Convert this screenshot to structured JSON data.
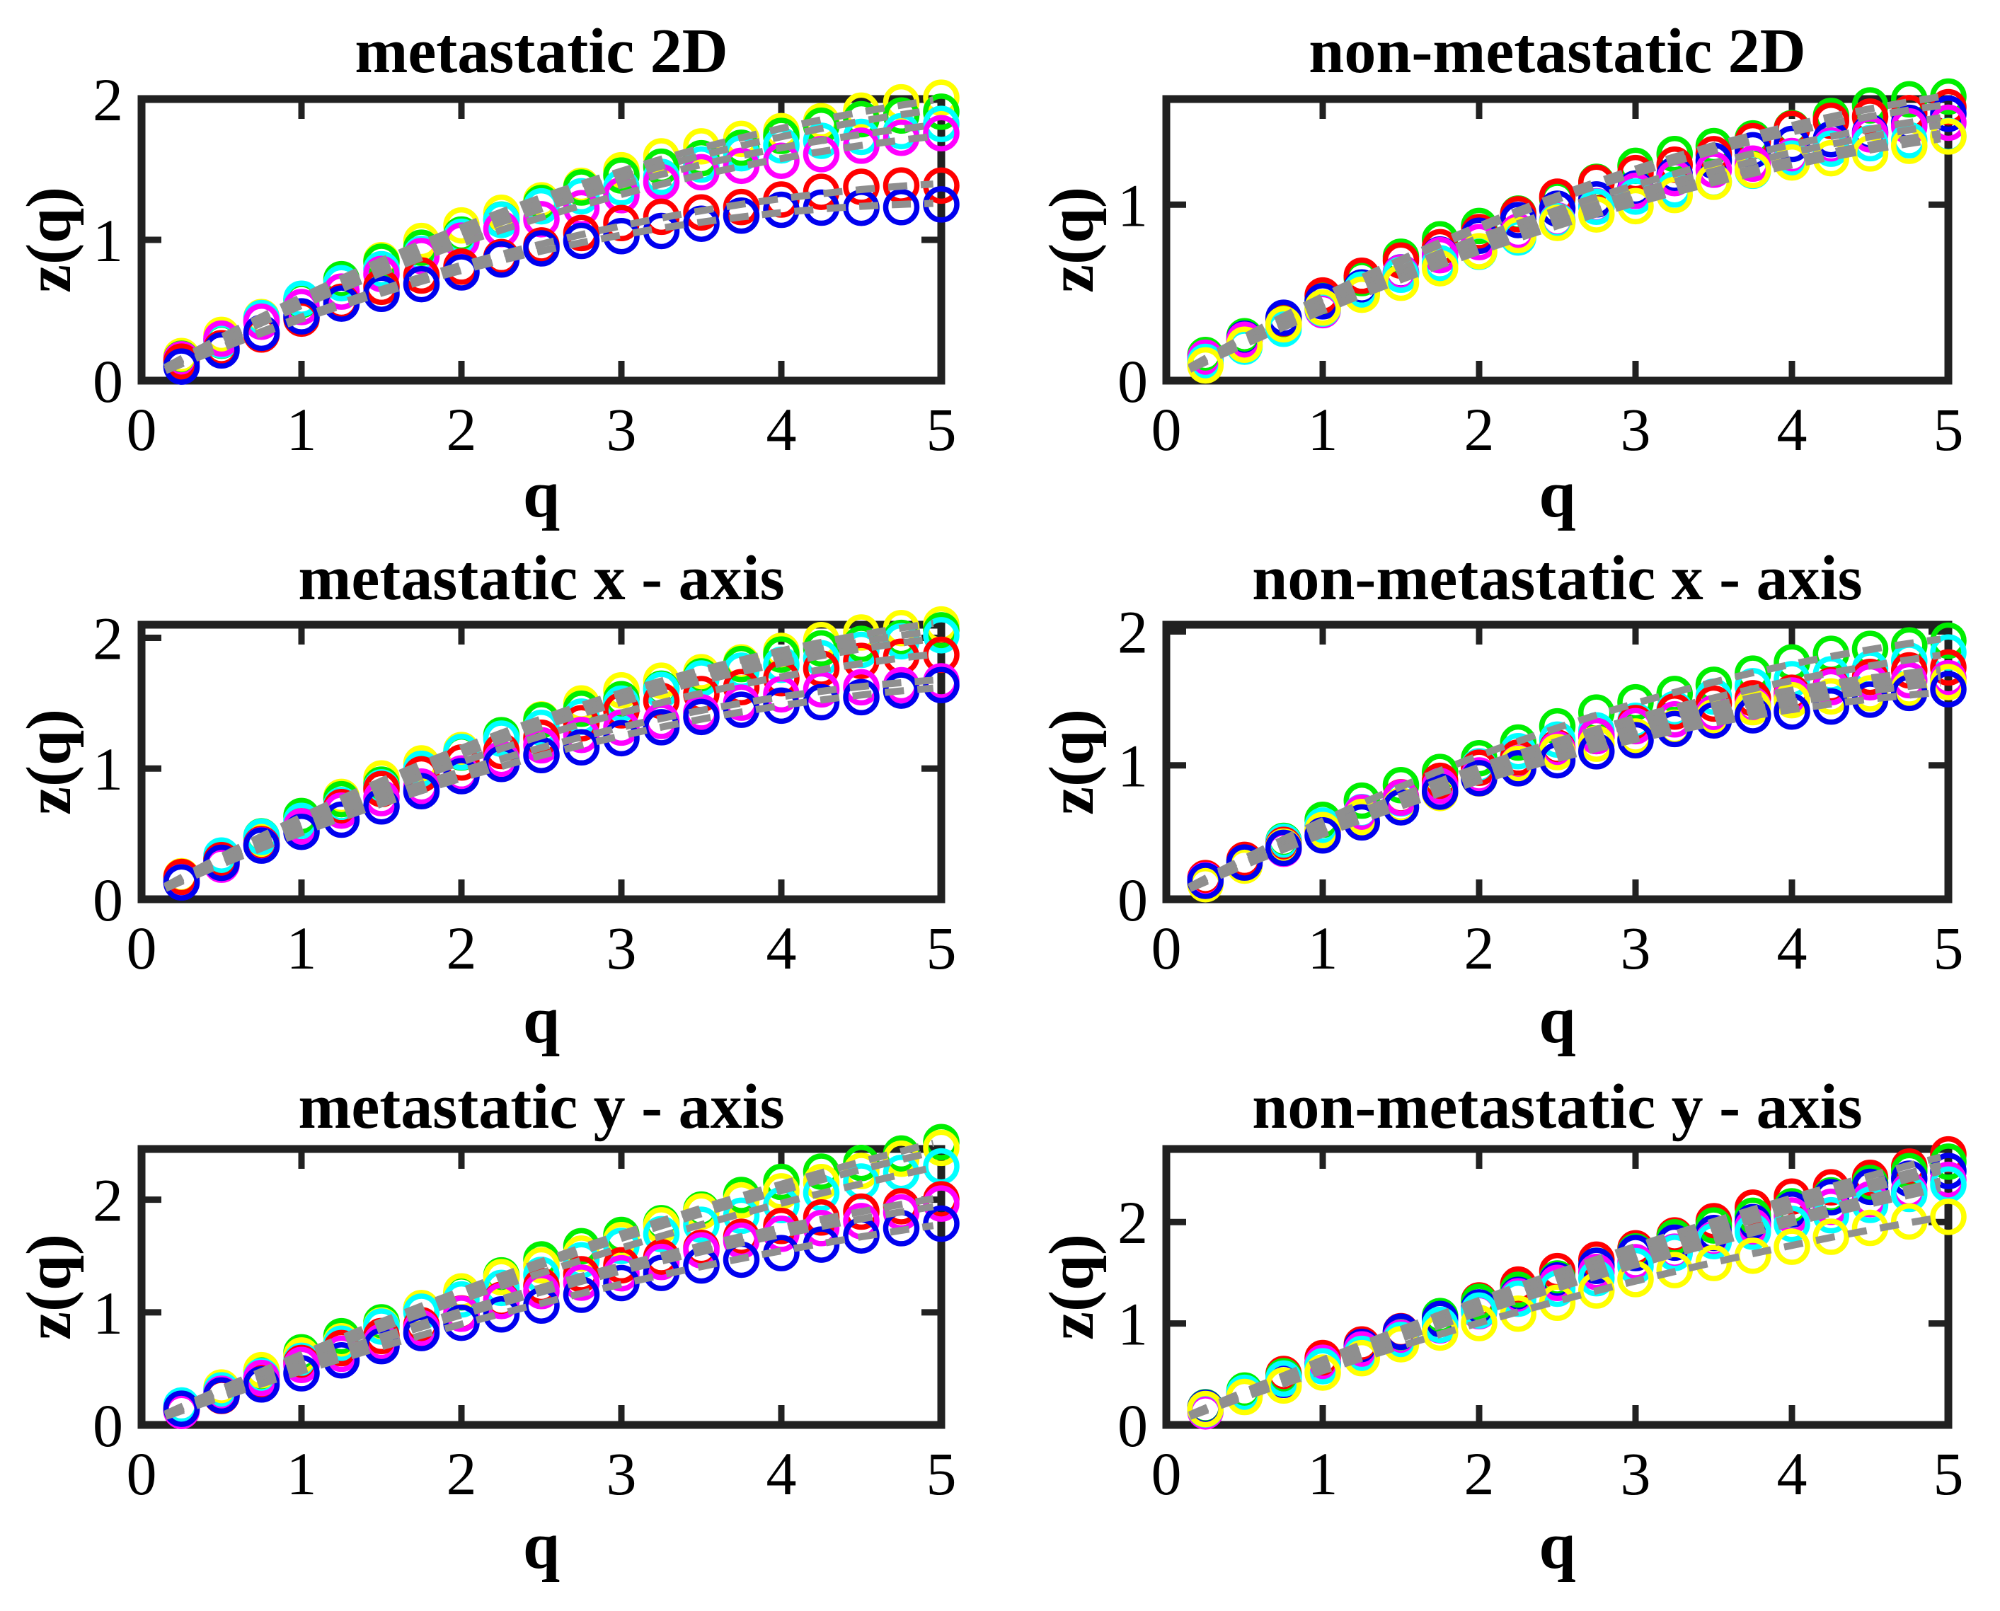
{
  "figure": {
    "background": "#ffffff",
    "text_color": "#000000",
    "frame_color": "#212121",
    "trend_color": "#8f8f8f",
    "trend_style": "dashed"
  },
  "chart_data": [
    {
      "type": "scatter",
      "title": "metastatic 2D",
      "xlabel": "q",
      "ylabel": "z(q)",
      "xlim": [
        0,
        5
      ],
      "ylim": [
        0,
        2.0
      ],
      "xticks": [
        0,
        1,
        2,
        3,
        4,
        5
      ],
      "yticks": [
        0,
        1,
        2
      ],
      "grid": false,
      "legend": "none",
      "marker": "open-circle",
      "q_start": 0.25,
      "q_step": 0.25,
      "q_end": 5,
      "series": [
        {
          "name": "yellow",
          "color": "#ffff00",
          "fit_a": 0.64,
          "fit_b": -0.048,
          "z_at_q5": 2.0
        },
        {
          "name": "green",
          "color": "#00ee00",
          "fit_a": 0.622,
          "fit_b": -0.0472,
          "z_at_q5": 1.93
        },
        {
          "name": "cyan",
          "color": "#00ffff",
          "fit_a": 0.612,
          "fit_b": -0.0496,
          "z_at_q5": 1.82
        },
        {
          "name": "magenta",
          "color": "#ff00ff",
          "fit_a": 0.58,
          "fit_b": -0.0464,
          "z_at_q5": 1.74
        },
        {
          "name": "red",
          "color": "#ff0000",
          "fit_a": 0.496,
          "fit_b": -0.0432,
          "z_at_q5": 1.4
        },
        {
          "name": "blue",
          "color": "#0000ee",
          "fit_a": 0.484,
          "fit_b": -0.0464,
          "z_at_q5": 1.26
        }
      ]
    },
    {
      "type": "scatter",
      "title": "non-metastatic 2D",
      "xlabel": "q",
      "ylabel": "z(q)",
      "xlim": [
        0,
        5
      ],
      "ylim": [
        0,
        1.6
      ],
      "xticks": [
        0,
        1,
        2,
        3,
        4,
        5
      ],
      "yticks": [
        0,
        1
      ],
      "grid": false,
      "legend": "none",
      "marker": "open-circle",
      "q_start": 0.25,
      "q_step": 0.25,
      "q_end": 5,
      "series": [
        {
          "name": "green",
          "color": "#00ee00",
          "fit_a": 0.516,
          "fit_b": -0.0384,
          "z_at_q5": 1.62
        },
        {
          "name": "red",
          "color": "#ff0000",
          "fit_a": 0.51,
          "fit_b": -0.0392,
          "z_at_q5": 1.57
        },
        {
          "name": "blue",
          "color": "#0000ee",
          "fit_a": 0.476,
          "fit_b": -0.0352,
          "z_at_q5": 1.5
        },
        {
          "name": "magenta",
          "color": "#ff00ff",
          "fit_a": 0.452,
          "fit_b": -0.032,
          "z_at_q5": 1.46
        },
        {
          "name": "cyan",
          "color": "#00ffff",
          "fit_a": 0.438,
          "fit_b": -0.0312,
          "z_at_q5": 1.41
        },
        {
          "name": "yellow",
          "color": "#ffff00",
          "fit_a": 0.428,
          "fit_b": -0.0304,
          "z_at_q5": 1.38
        }
      ]
    },
    {
      "type": "scatter",
      "title": "metastatic x - axis",
      "xlabel": "q",
      "ylabel": "z(q)",
      "xlim": [
        0,
        5
      ],
      "ylim": [
        0,
        2.1
      ],
      "xticks": [
        0,
        1,
        2,
        3,
        4,
        5
      ],
      "yticks": [
        0,
        1,
        2
      ],
      "grid": false,
      "legend": "none",
      "marker": "open-circle",
      "q_start": 0.25,
      "q_step": 0.25,
      "q_end": 5,
      "series": [
        {
          "name": "yellow",
          "color": "#ffff00",
          "fit_a": 0.68,
          "fit_b": -0.0512,
          "z_at_q5": 2.12
        },
        {
          "name": "green",
          "color": "#00ee00",
          "fit_a": 0.668,
          "fit_b": -0.0512,
          "z_at_q5": 2.06
        },
        {
          "name": "cyan",
          "color": "#00ffff",
          "fit_a": 0.656,
          "fit_b": -0.0512,
          "z_at_q5": 2.0
        },
        {
          "name": "red",
          "color": "#ff0000",
          "fit_a": 0.624,
          "fit_b": -0.0496,
          "z_at_q5": 1.88
        },
        {
          "name": "magenta",
          "color": "#ff00ff",
          "fit_a": 0.592,
          "fit_b": -0.0512,
          "z_at_q5": 1.68
        },
        {
          "name": "blue",
          "color": "#0000ee",
          "fit_a": 0.556,
          "fit_b": -0.0464,
          "z_at_q5": 1.62
        }
      ]
    },
    {
      "type": "scatter",
      "title": "non-metastatic x - axis",
      "xlabel": "q",
      "ylabel": "z(q)",
      "xlim": [
        0,
        5
      ],
      "ylim": [
        0,
        2.05
      ],
      "xticks": [
        0,
        1,
        2,
        3,
        4,
        5
      ],
      "yticks": [
        0,
        1,
        2
      ],
      "grid": false,
      "legend": "none",
      "marker": "open-circle",
      "q_start": 0.25,
      "q_step": 0.25,
      "q_end": 5,
      "series": [
        {
          "name": "green",
          "color": "#00ee00",
          "fit_a": 0.634,
          "fit_b": -0.0488,
          "z_at_q5": 1.95
        },
        {
          "name": "cyan",
          "color": "#00ffff",
          "fit_a": 0.578,
          "fit_b": -0.0424,
          "z_at_q5": 1.83
        },
        {
          "name": "red",
          "color": "#ff0000",
          "fit_a": 0.576,
          "fit_b": -0.0464,
          "z_at_q5": 1.72
        },
        {
          "name": "magenta",
          "color": "#ff00ff",
          "fit_a": 0.562,
          "fit_b": -0.0456,
          "z_at_q5": 1.67
        },
        {
          "name": "yellow",
          "color": "#ffff00",
          "fit_a": 0.54,
          "fit_b": -0.0432,
          "z_at_q5": 1.62
        },
        {
          "name": "blue",
          "color": "#0000ee",
          "fit_a": 0.53,
          "fit_b": -0.044,
          "z_at_q5": 1.55
        }
      ]
    },
    {
      "type": "scatter",
      "title": "metastatic y - axis",
      "xlabel": "q",
      "ylabel": "z(q)",
      "xlim": [
        0,
        5
      ],
      "ylim": [
        0,
        2.45
      ],
      "xticks": [
        0,
        1,
        2,
        3,
        4,
        5
      ],
      "yticks": [
        0,
        1,
        2
      ],
      "grid": false,
      "legend": "none",
      "marker": "open-circle",
      "q_start": 0.25,
      "q_step": 0.25,
      "q_end": 5,
      "series": [
        {
          "name": "green",
          "color": "#00ee00",
          "fit_a": 0.656,
          "fit_b": -0.0304,
          "z_at_q5": 2.52
        },
        {
          "name": "yellow",
          "color": "#ffff00",
          "fit_a": 0.648,
          "fit_b": -0.032,
          "z_at_q5": 2.44
        },
        {
          "name": "cyan",
          "color": "#00ffff",
          "fit_a": 0.62,
          "fit_b": -0.032,
          "z_at_q5": 2.3
        },
        {
          "name": "red",
          "color": "#ff0000",
          "fit_a": 0.572,
          "fit_b": -0.0336,
          "z_at_q5": 2.02
        },
        {
          "name": "magenta",
          "color": "#ff00ff",
          "fit_a": 0.554,
          "fit_b": -0.0328,
          "z_at_q5": 1.95
        },
        {
          "name": "blue",
          "color": "#0000ee",
          "fit_a": 0.508,
          "fit_b": -0.0304,
          "z_at_q5": 1.78
        }
      ]
    },
    {
      "type": "scatter",
      "title": "non-metastatic y - axis",
      "xlabel": "q",
      "ylabel": "z(q)",
      "xlim": [
        0,
        5
      ],
      "ylim": [
        0,
        2.72
      ],
      "xticks": [
        0,
        1,
        2,
        3,
        4,
        5
      ],
      "yticks": [
        0,
        1,
        2
      ],
      "grid": false,
      "legend": "none",
      "marker": "open-circle",
      "q_start": 0.25,
      "q_step": 0.25,
      "q_end": 5,
      "series": [
        {
          "name": "red",
          "color": "#ff0000",
          "fit_a": 0.668,
          "fit_b": -0.0272,
          "z_at_q5": 2.66
        },
        {
          "name": "green",
          "color": "#00ee00",
          "fit_a": 0.652,
          "fit_b": -0.0272,
          "z_at_q5": 2.58
        },
        {
          "name": "blue",
          "color": "#0000ee",
          "fit_a": 0.64,
          "fit_b": -0.0272,
          "z_at_q5": 2.52
        },
        {
          "name": "magenta",
          "color": "#ff00ff",
          "fit_a": 0.62,
          "fit_b": -0.0272,
          "z_at_q5": 2.42
        },
        {
          "name": "cyan",
          "color": "#00ffff",
          "fit_a": 0.61,
          "fit_b": -0.028,
          "z_at_q5": 2.35
        },
        {
          "name": "yellow",
          "color": "#ffff00",
          "fit_a": 0.564,
          "fit_b": -0.0304,
          "z_at_q5": 2.06
        }
      ]
    }
  ]
}
